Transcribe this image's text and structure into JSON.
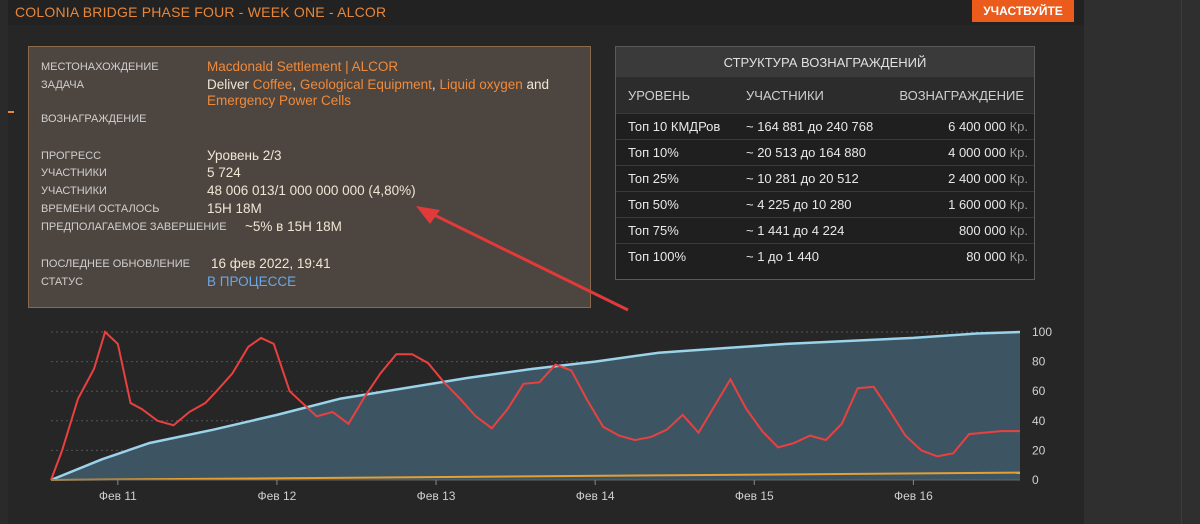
{
  "header": {
    "title": "COLONIA BRIDGE PHASE FOUR - WEEK ONE - ALCOR",
    "join_label": "УЧАСТВУЙТЕ"
  },
  "info": {
    "location_label": "МЕСТОНАХОЖДЕНИЕ",
    "location_value": "Macdonald Settlement | ALCOR",
    "task_label": "ЗАДАЧА",
    "task_deliver": "Deliver",
    "task_items": [
      "Coffee",
      "Geological Equipment",
      "Liquid oxygen",
      "Emergency Power Cells"
    ],
    "task_sep1": ", ",
    "task_sep2": ", ",
    "task_and": "and",
    "reward_label": "ВОЗНАГРАЖДЕНИЕ",
    "progress_label": "ПРОГРЕСС",
    "progress_value": "Уровень 2/3",
    "participants_label": "УЧАСТНИКИ",
    "participants_value": "5 724",
    "participants2_label": "УЧАСТНИКИ",
    "participants2_value": "48 006 013/1 000 000 000 (4,80%)",
    "time_left_label": "ВРЕМЕНИ ОСТАЛОСЬ",
    "time_left_value": "15H 18M",
    "expected_label": "ПРЕДПОЛАГАЕМОЕ ЗАВЕРШЕНИЕ",
    "expected_value": "~5% в 15H 18M",
    "updated_label": "ПОСЛЕДНЕЕ ОБНОВЛЕНИЕ",
    "updated_value": "16 фев 2022, 19:41",
    "status_label": "СТАТУС",
    "status_value": "В ПРОЦЕССЕ"
  },
  "rewards": {
    "title": "СТРУКТУРА ВОЗНАГРАЖДЕНИЙ",
    "col_level": "УРОВЕНЬ",
    "col_participants": "УЧАСТНИКИ",
    "col_reward": "ВОЗНАГРАЖДЕНИЕ",
    "currency": "Кр.",
    "rows": [
      {
        "level": "Топ 10 КМДРов",
        "participants": "~ 164 881 до 240 768",
        "amount": "6 400 000"
      },
      {
        "level": "Топ 10%",
        "participants": "~ 20 513 до 164 880",
        "amount": "4 000 000"
      },
      {
        "level": "Топ 25%",
        "participants": "~ 10 281 до 20 512",
        "amount": "2 400 000"
      },
      {
        "level": "Топ 50%",
        "participants": "~ 4 225 до 10 280",
        "amount": "1 600 000"
      },
      {
        "level": "Топ 75%",
        "participants": "~ 1 441 до 4 224",
        "amount": "800 000"
      },
      {
        "level": "Топ 100%",
        "participants": "~ 1 до 1 440",
        "amount": "80 000"
      }
    ]
  },
  "chart_data": {
    "type": "line",
    "x_labels": [
      "Фев 11",
      "Фев 12",
      "Фев 13",
      "Фев 14",
      "Фев 15",
      "Фев 16"
    ],
    "y_ticks": [
      0,
      20,
      40,
      60,
      80,
      100
    ],
    "ylim": [
      0,
      100
    ],
    "xlim": [
      10.58,
      16.67
    ],
    "grid": true,
    "series": [
      {
        "color": "#9ad3ea",
        "fill": "#3d5563",
        "x": [
          10.58,
          10.9,
          11.2,
          11.6,
          12.0,
          12.4,
          12.8,
          13.2,
          13.6,
          14.0,
          14.4,
          14.8,
          15.2,
          15.6,
          16.0,
          16.4,
          16.67
        ],
        "values": [
          0,
          14,
          25,
          34,
          44,
          55,
          62,
          69,
          75,
          80,
          86,
          89,
          92,
          94,
          96,
          99,
          100
        ]
      },
      {
        "color": "#e94040",
        "x": [
          10.58,
          10.65,
          10.75,
          10.85,
          10.92,
          11.0,
          11.08,
          11.15,
          11.25,
          11.35,
          11.45,
          11.55,
          11.62,
          11.72,
          11.82,
          11.9,
          11.98,
          12.08,
          12.15,
          12.25,
          12.35,
          12.45,
          12.55,
          12.65,
          12.75,
          12.85,
          12.95,
          13.05,
          13.15,
          13.25,
          13.35,
          13.45,
          13.55,
          13.65,
          13.75,
          13.85,
          13.95,
          14.05,
          14.15,
          14.25,
          14.35,
          14.45,
          14.55,
          14.65,
          14.75,
          14.85,
          14.95,
          15.05,
          15.15,
          15.25,
          15.35,
          15.45,
          15.55,
          15.65,
          15.75,
          15.85,
          15.95,
          16.05,
          16.15,
          16.25,
          16.35,
          16.45,
          16.55,
          16.67
        ],
        "values": [
          0,
          20,
          55,
          75,
          100,
          92,
          52,
          48,
          40,
          37,
          46,
          52,
          60,
          72,
          90,
          96,
          92,
          60,
          53,
          43,
          46,
          38,
          56,
          72,
          85,
          85,
          79,
          66,
          55,
          43,
          35,
          48,
          65,
          66,
          78,
          74,
          54,
          36,
          30,
          27,
          29,
          34,
          44,
          32,
          50,
          68,
          48,
          33,
          22,
          25,
          30,
          27,
          38,
          62,
          63,
          47,
          30,
          20,
          16,
          18,
          31,
          32,
          33,
          33
        ]
      },
      {
        "color": "#e5a033",
        "x": [
          10.58,
          16.67
        ],
        "values": [
          0,
          5
        ]
      }
    ]
  }
}
